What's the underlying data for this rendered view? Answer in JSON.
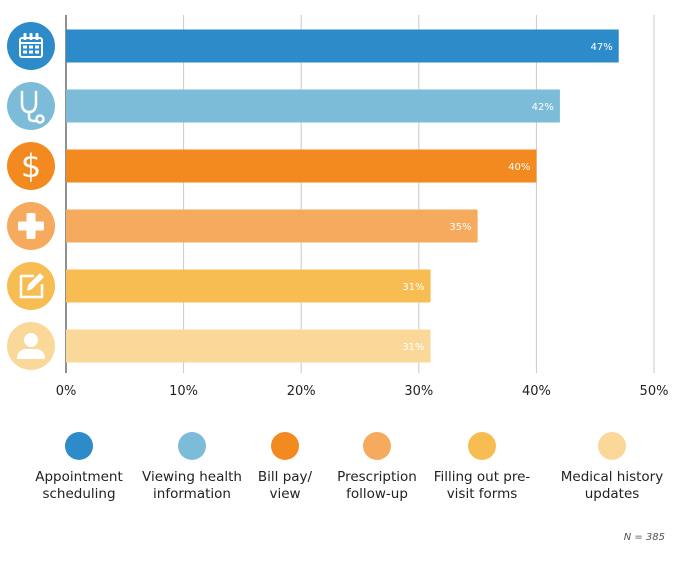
{
  "chart_data": {
    "type": "bar",
    "orientation": "horizontal",
    "categories": [
      "Appointment scheduling",
      "Viewing health information",
      "Bill pay/ view",
      "Prescription follow-up",
      "Filling out pre-visit forms",
      "Medical history updates"
    ],
    "legend_labels": [
      "Appointment\nscheduling",
      "Viewing health\ninformation",
      "Bill pay/\nview",
      "Prescription\nfollow-up",
      "Filling out pre-\nvisit forms",
      "Medical history\nupdates"
    ],
    "values": [
      47,
      42,
      40,
      35,
      31,
      31
    ],
    "value_labels": [
      "47%",
      "42%",
      "40%",
      "35%",
      "31%",
      "31%"
    ],
    "colors": [
      "#2e8bc9",
      "#7dbcd9",
      "#f38a20",
      "#f6aa5e",
      "#f8bd52",
      "#fad89a"
    ],
    "icons": [
      "calendar-icon",
      "stethoscope-icon",
      "dollar-icon",
      "medical-cross-icon",
      "edit-form-icon",
      "person-icon"
    ],
    "xlim": [
      0,
      50
    ],
    "x_ticks": [
      0,
      10,
      20,
      30,
      40,
      50
    ],
    "x_tick_labels": [
      "0%",
      "10%",
      "20%",
      "30%",
      "40%",
      "50%"
    ],
    "grid": true,
    "legend_position": "bottom",
    "title": "",
    "xlabel": "",
    "ylabel": ""
  },
  "note": "N = 385"
}
